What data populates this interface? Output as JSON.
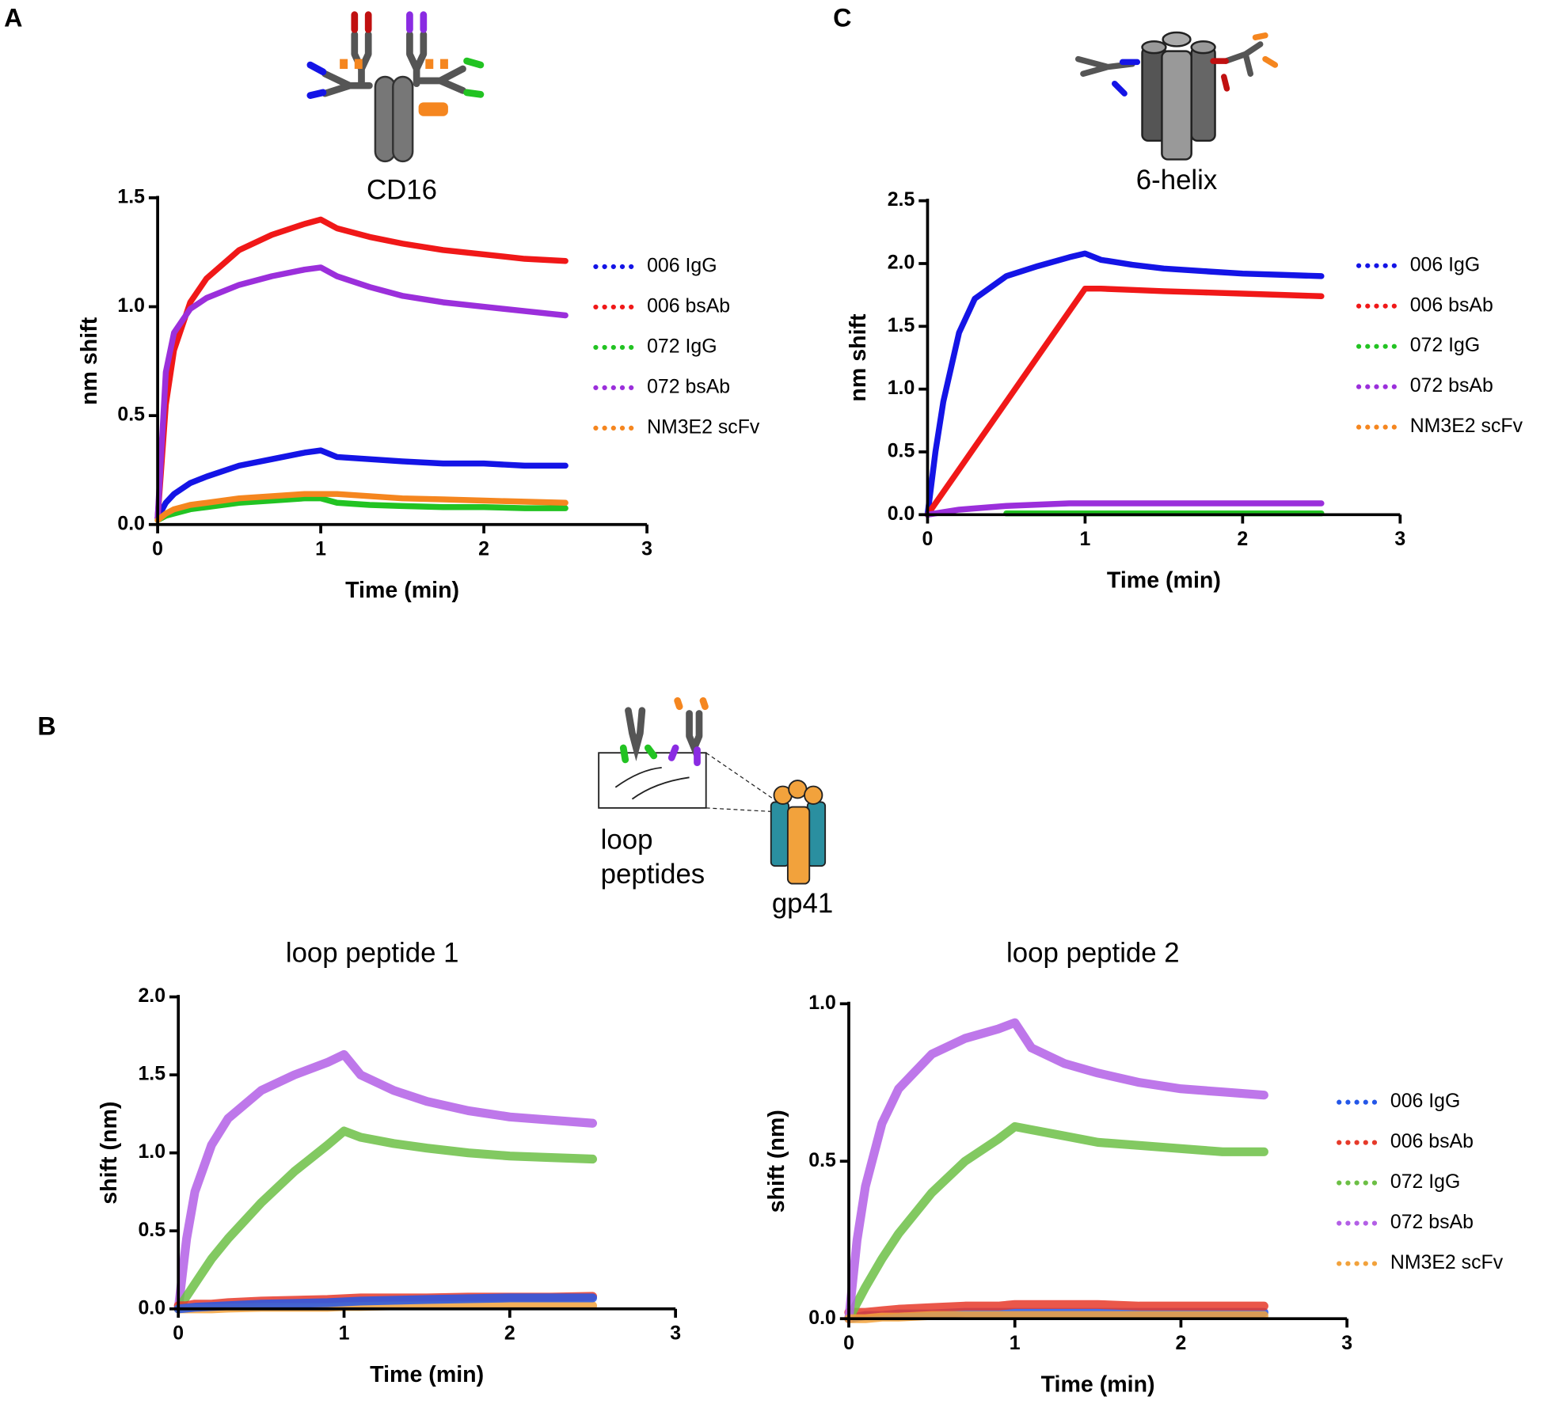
{
  "panels": [
    "A",
    "C",
    "B"
  ],
  "diagram_labels": [
    "loop",
    "peptides",
    "gp41"
  ],
  "chart_data": [
    {
      "type": "line",
      "title": "CD16",
      "x_label": "Time (min)",
      "y_label": "nm shift",
      "legend": "right",
      "x": [
        0,
        0.05,
        0.1,
        0.2,
        0.3,
        0.5,
        0.7,
        0.9,
        1.0,
        1.1,
        1.3,
        1.5,
        1.75,
        2.0,
        2.25,
        2.5
      ],
      "xlim": [
        0,
        3
      ],
      "ylim": [
        0,
        1.5
      ],
      "xticks": [
        0,
        1,
        2,
        3
      ],
      "yticks": [
        {
          "value": 0,
          "label": "0.0"
        },
        0.5,
        {
          "value": 1,
          "label": "1.0"
        },
        1.5
      ],
      "series": [
        {
          "name": "006 IgG",
          "color": "#1414e6",
          "values": [
            0.03,
            0.1,
            0.14,
            0.19,
            0.22,
            0.27,
            0.3,
            0.33,
            0.34,
            0.31,
            0.3,
            0.29,
            0.28,
            0.28,
            0.27,
            0.27
          ]
        },
        {
          "name": "006 bsAb",
          "color": "#f01818",
          "values": [
            0.03,
            0.55,
            0.8,
            1.02,
            1.13,
            1.26,
            1.33,
            1.38,
            1.4,
            1.36,
            1.32,
            1.29,
            1.26,
            1.24,
            1.22,
            1.21
          ]
        },
        {
          "name": "072 IgG",
          "color": "#22c322",
          "values": [
            0.02,
            0.04,
            0.05,
            0.07,
            0.08,
            0.1,
            0.11,
            0.12,
            0.12,
            0.1,
            0.09,
            0.085,
            0.08,
            0.08,
            0.075,
            0.075
          ]
        },
        {
          "name": "072 bsAb",
          "color": "#9b2fdb",
          "values": [
            0.03,
            0.7,
            0.88,
            0.99,
            1.04,
            1.1,
            1.14,
            1.17,
            1.18,
            1.14,
            1.09,
            1.05,
            1.02,
            1.0,
            0.98,
            0.96
          ]
        },
        {
          "name": "NM3E2 scFv",
          "color": "#f5861f",
          "values": [
            0.02,
            0.05,
            0.07,
            0.09,
            0.1,
            0.12,
            0.13,
            0.14,
            0.14,
            0.14,
            0.13,
            0.12,
            0.115,
            0.11,
            0.105,
            0.1
          ]
        }
      ]
    },
    {
      "type": "line",
      "title": "6-helix",
      "x_label": "Time (min)",
      "y_label": "nm shift",
      "legend": "right",
      "x": [
        0,
        0.05,
        0.1,
        0.2,
        0.3,
        0.5,
        0.7,
        0.9,
        1.0,
        1.1,
        1.3,
        1.5,
        1.75,
        2.0,
        2.25,
        2.5
      ],
      "xlim": [
        0,
        3
      ],
      "ylim": [
        0,
        2.5
      ],
      "xticks": [
        0,
        1,
        2,
        3
      ],
      "yticks": [
        {
          "value": 0,
          "label": "0.0"
        },
        0.5,
        {
          "value": 1,
          "label": "1.0"
        },
        1.5,
        {
          "value": 2,
          "label": "2.0"
        },
        2.5
      ],
      "series": [
        {
          "name": "006 IgG",
          "color": "#1414e6",
          "values": [
            0,
            0.5,
            0.9,
            1.45,
            1.72,
            1.9,
            1.98,
            2.05,
            2.08,
            2.03,
            1.99,
            1.96,
            1.94,
            1.92,
            1.91,
            1.9
          ]
        },
        {
          "name": "006 bsAb",
          "color": "#f01818",
          "values": [
            0,
            0.09,
            0.18,
            0.36,
            0.54,
            0.9,
            1.26,
            1.62,
            1.8,
            1.8,
            1.79,
            1.78,
            1.77,
            1.76,
            1.75,
            1.74
          ]
        },
        {
          "name": "072 IgG",
          "color": "#22c322",
          "values": [
            null,
            null,
            null,
            null,
            null,
            0.01,
            0.01,
            0.01,
            0.01,
            0.01,
            0.01,
            0.01,
            0.01,
            0.01,
            0.01,
            0.01
          ]
        },
        {
          "name": "072 bsAb",
          "color": "#9b2fdb",
          "values": [
            0,
            0.01,
            0.02,
            0.04,
            0.05,
            0.07,
            0.08,
            0.09,
            0.09,
            0.09,
            0.09,
            0.09,
            0.09,
            0.09,
            0.09,
            0.09
          ]
        },
        {
          "name": "NM3E2 scFv",
          "color": "#f5861f",
          "values": [
            null,
            null,
            null,
            null,
            null,
            null,
            null,
            null,
            null,
            null,
            null,
            null,
            null,
            null,
            null,
            null
          ]
        }
      ]
    },
    {
      "type": "line",
      "title": "loop peptide 1",
      "x_label": "Time (min)",
      "y_label": "shift (nm)",
      "x": [
        0,
        0.05,
        0.1,
        0.2,
        0.3,
        0.5,
        0.7,
        0.9,
        1.0,
        1.1,
        1.3,
        1.5,
        1.75,
        2.0,
        2.25,
        2.5
      ],
      "xlim": [
        0,
        3
      ],
      "ylim": [
        0,
        2
      ],
      "xticks": [
        0,
        1,
        2,
        3
      ],
      "yticks": [
        {
          "value": 0,
          "label": "0.0"
        },
        0.5,
        {
          "value": 1,
          "label": "1.0"
        },
        1.5,
        {
          "value": 2,
          "label": "2.0"
        }
      ],
      "series": [
        {
          "color": "#b35fe6",
          "values": [
            0,
            0.45,
            0.75,
            1.05,
            1.22,
            1.4,
            1.5,
            1.58,
            1.63,
            1.5,
            1.4,
            1.33,
            1.27,
            1.23,
            1.21,
            1.19
          ]
        },
        {
          "color": "#6cbf45",
          "values": [
            0,
            0.08,
            0.16,
            0.32,
            0.45,
            0.68,
            0.88,
            1.05,
            1.14,
            1.1,
            1.06,
            1.03,
            1.0,
            0.98,
            0.97,
            0.96
          ]
        },
        {
          "color": "#e63a2a",
          "values": [
            0.02,
            0.02,
            0.03,
            0.03,
            0.04,
            0.05,
            0.055,
            0.06,
            0.065,
            0.07,
            0.07,
            0.07,
            0.075,
            0.075,
            0.075,
            0.08
          ]
        },
        {
          "color": "#f2a23c",
          "values": [
            0,
            0,
            0,
            0,
            0.005,
            0.01,
            0.01,
            0.01,
            0.015,
            0.015,
            0.02,
            0.02,
            0.02,
            0.02,
            0.02,
            0.02
          ]
        },
        {
          "color": "#2457e8",
          "values": [
            0,
            0.005,
            0.01,
            0.015,
            0.02,
            0.03,
            0.035,
            0.04,
            0.045,
            0.05,
            0.055,
            0.06,
            0.065,
            0.07,
            0.07,
            0.07
          ]
        }
      ]
    },
    {
      "type": "line",
      "title": "loop peptide 2",
      "x_label": "Time (min)",
      "y_label": "shift (nm)",
      "legend": "right",
      "x": [
        0,
        0.05,
        0.1,
        0.2,
        0.3,
        0.5,
        0.7,
        0.9,
        1.0,
        1.1,
        1.3,
        1.5,
        1.75,
        2.0,
        2.25,
        2.5
      ],
      "xlim": [
        0,
        3
      ],
      "ylim": [
        0,
        1
      ],
      "xticks": [
        0,
        1,
        2,
        3
      ],
      "yticks": [
        {
          "value": 0,
          "label": "0.0"
        },
        0.5,
        {
          "value": 1,
          "label": "1.0"
        }
      ],
      "series": [
        {
          "name": "006 IgG",
          "color": "#2457e8",
          "values": [
            0,
            0.005,
            0.01,
            0.01,
            0.015,
            0.015,
            0.02,
            0.02,
            0.02,
            0.02,
            0.02,
            0.02,
            0.02,
            0.02,
            0.02,
            0.02
          ]
        },
        {
          "name": "006 bsAb",
          "color": "#e63a2a",
          "values": [
            0.02,
            0.02,
            0.02,
            0.025,
            0.03,
            0.035,
            0.04,
            0.04,
            0.045,
            0.045,
            0.045,
            0.045,
            0.04,
            0.04,
            0.04,
            0.04
          ]
        },
        {
          "name": "072 IgG",
          "color": "#6cbf45",
          "values": [
            0,
            0.05,
            0.1,
            0.19,
            0.27,
            0.4,
            0.5,
            0.57,
            0.61,
            0.6,
            0.58,
            0.56,
            0.55,
            0.54,
            0.53,
            0.53
          ]
        },
        {
          "name": "072 bsAb",
          "color": "#b35fe6",
          "values": [
            0,
            0.25,
            0.42,
            0.62,
            0.73,
            0.84,
            0.89,
            0.92,
            0.94,
            0.86,
            0.81,
            0.78,
            0.75,
            0.73,
            0.72,
            0.71
          ]
        },
        {
          "name": "NM3E2 scFv",
          "color": "#f2a23c",
          "values": [
            0,
            0,
            0,
            0.005,
            0.005,
            0.01,
            0.01,
            0.01,
            0.01,
            0.01,
            0.01,
            0.01,
            0.01,
            0.01,
            0.01,
            0.01
          ]
        }
      ]
    }
  ]
}
